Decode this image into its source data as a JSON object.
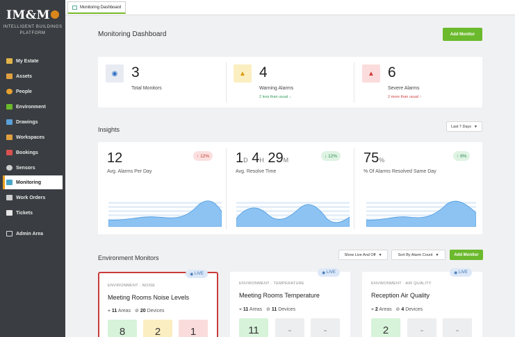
{
  "sidebar": {
    "logo": "IM&M",
    "subtitle_line1": "INTELLIGENT BUILDINGS",
    "subtitle_line2": "PLATFORM",
    "items": [
      {
        "label": "My Estate",
        "icon": "building-icon",
        "color": "#e0b34a"
      },
      {
        "label": "Assets",
        "icon": "box-icon",
        "color": "#e0a040"
      },
      {
        "label": "People",
        "icon": "people-icon",
        "color": "#e8a030"
      },
      {
        "label": "Environment",
        "icon": "leaf-icon",
        "color": "#6bb92c"
      },
      {
        "label": "Drawings",
        "icon": "drawing-icon",
        "color": "#5aa0d8"
      },
      {
        "label": "Workspaces",
        "icon": "desk-icon",
        "color": "#e0a040"
      },
      {
        "label": "Bookings",
        "icon": "calendar-icon",
        "color": "#d95050"
      },
      {
        "label": "Sensors",
        "icon": "sensor-icon",
        "color": "#cfcfcf"
      },
      {
        "label": "Monitoring",
        "icon": "monitor-icon",
        "color": "#4aa6c8"
      },
      {
        "label": "Work Orders",
        "icon": "clipboard-icon",
        "color": "#cfcfcf"
      },
      {
        "label": "Tickets",
        "icon": "ticket-icon",
        "color": "#e6e6e6"
      }
    ],
    "admin": {
      "label": "Admin Area",
      "icon": "edit-icon"
    }
  },
  "tab": {
    "label": "Monitoring Dashboard"
  },
  "header": {
    "title": "Monitoring Dashboard",
    "add_button": "Add Monitor"
  },
  "stats": [
    {
      "value": "3",
      "label": "Total Monitors",
      "trend": "",
      "icon": "eye-icon"
    },
    {
      "value": "4",
      "label": "Warning Alarms",
      "trend": "2 less than usual",
      "icon": "bell-icon"
    },
    {
      "value": "6",
      "label": "Severe Alarms",
      "trend": "2 more than usual",
      "icon": "bell-icon"
    }
  ],
  "insights": {
    "title": "Insights",
    "range": "Last 7 Days",
    "cards": [
      {
        "value": "12",
        "label": "Avg. Alarms Per Day",
        "badge": "12%",
        "direction": "up"
      },
      {
        "d": "1",
        "d_unit": "D",
        "h": "4",
        "h_unit": "H",
        "m": "29",
        "m_unit": "M",
        "label": "Avg. Resolve Time",
        "badge": "12%",
        "direction": "down"
      },
      {
        "value": "75",
        "unit": "%",
        "label": "% Of Alarms Resolved Same Day",
        "badge": "8%",
        "direction": "up"
      }
    ]
  },
  "environment": {
    "title": "Environment Monitors",
    "filter": "Show Live And Off",
    "sort": "Sort By Alarm Count",
    "add_button": "Add Monitor",
    "monitors": [
      {
        "category": "ENVIRONMENT · NOISE",
        "title": "Meeting Rooms Noise Levels",
        "areas": "11",
        "areas_label": "Areas",
        "devices": "20",
        "devices_label": "Devices",
        "live": "LIVE",
        "counts": [
          "8",
          "2",
          "1"
        ]
      },
      {
        "category": "ENVIRONMENT · TEMPERATURE",
        "title": "Meeting Rooms Temperature",
        "areas": "11",
        "areas_label": "Areas",
        "devices": "11",
        "devices_label": "Devices",
        "live": "LIVE",
        "counts": [
          "11",
          "-",
          "-"
        ]
      },
      {
        "category": "ENVIRONMENT · AIR QUALITY",
        "title": "Reception Air Quality",
        "areas": "2",
        "areas_label": "Areas",
        "devices": "4",
        "devices_label": "Devices",
        "live": "LIVE",
        "counts": [
          "2",
          "-",
          "-"
        ]
      }
    ]
  },
  "colors": {
    "accent": "#6bb92c",
    "warning": "#f0b429",
    "severe": "#e05252",
    "wave": "#5aa6e8"
  }
}
